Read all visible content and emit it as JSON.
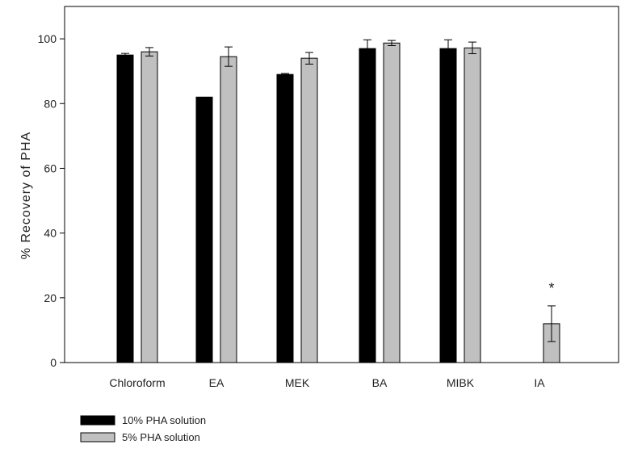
{
  "chart_data": {
    "type": "bar",
    "title": "",
    "xlabel": "",
    "ylabel": "% Recovery of PHA",
    "ylim": [
      0,
      110
    ],
    "yticks": [
      0,
      20,
      40,
      60,
      80,
      100
    ],
    "categories": [
      "Chloroform",
      "EA",
      "MEK",
      "BA",
      "MIBK",
      "IA"
    ],
    "series": [
      {
        "name": "10% PHA solution",
        "color": "#000000",
        "values": [
          95,
          82,
          89,
          97,
          97,
          null
        ],
        "errors": [
          0.5,
          0,
          0.3,
          2.7,
          2.7,
          null
        ]
      },
      {
        "name": "5% PHA solution",
        "color": "#c0c0c0",
        "values": [
          96,
          94.5,
          94,
          98.7,
          97.2,
          12
        ],
        "errors": [
          1.3,
          3,
          1.8,
          0.8,
          1.8,
          5.5
        ]
      }
    ],
    "annotations": [
      {
        "category": "IA",
        "text": "*"
      }
    ],
    "grid": false,
    "legend_position": "bottom-left"
  }
}
